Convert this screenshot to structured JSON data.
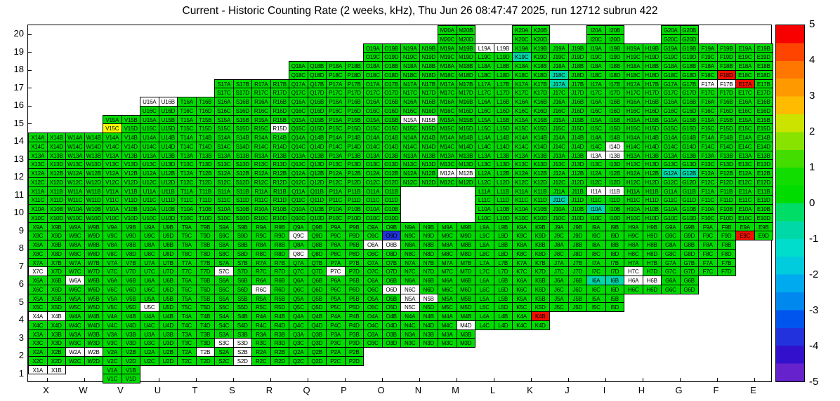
{
  "title": "Current - Historic Counting Rate (2 weeks, kHz), Thu Jun 26 08:47:47 2025, run 12712 subrun 422",
  "chart_data": {
    "type": "heatmap",
    "xlabel": "",
    "ylabel": "",
    "columns": [
      "X",
      "W",
      "V",
      "U",
      "T",
      "S",
      "R",
      "Q",
      "P",
      "O",
      "N",
      "M",
      "L",
      "K",
      "J",
      "I",
      "H",
      "G",
      "F",
      "E"
    ],
    "rows": [
      20,
      19,
      18,
      17,
      16,
      15,
      14,
      13,
      12,
      11,
      10,
      9,
      8,
      7,
      6,
      5,
      4,
      3,
      2,
      1
    ],
    "channels": [
      "A",
      "B",
      "C",
      "D"
    ],
    "value_colors": {
      "g": "#00dc00",
      "c": "#00d8a8",
      "w": "#ffffff",
      "y": "#ffff00",
      "r": "#f01000",
      "b": "#2233dd"
    },
    "legend_note": "g=~+0.5 green, c=~-0.5 teal, y=~+2.5 yellow, r=~+5 red, b=~-3.5 blue, w=no data, x=absent",
    "colorbar": {
      "min": -5,
      "max": 5,
      "ticks": [
        5,
        4,
        3,
        2,
        1,
        0,
        -1,
        -2,
        -3,
        -4,
        -5
      ],
      "band_colors": [
        "#f80000",
        "#ff4400",
        "#ff7700",
        "#ff9900",
        "#ffbb00",
        "#cce300",
        "#88e300",
        "#44dd00",
        "#11dd00",
        "#00dc00",
        "#00dd66",
        "#00d8a8",
        "#00ddcc",
        "#00ccdd",
        "#00aaee",
        "#0088ee",
        "#0055ee",
        "#2233dd",
        "#3311cc",
        "#6622cc"
      ]
    },
    "rows_spec": [
      {
        "row": 20,
        "cols": "MKIG",
        "overrides": {}
      },
      {
        "row": 19,
        "cols": "ONMLKJIHGFE",
        "overrides": {
          "L": "wwgg",
          "K": "ggcg"
        }
      },
      {
        "row": 18,
        "cols": "QPONMLKJIHGFE",
        "overrides": {
          "J": "ggcg",
          "F": "gggr"
        }
      },
      {
        "row": 17,
        "cols": "SRQPONMLKJIHGFE",
        "overrides": {
          "J": "cggg",
          "F": "wwgg",
          "E": "rggg"
        }
      },
      {
        "row": 16,
        "cols": "UTSRQPONMLKJIHGFE",
        "overrides": {
          "U": "wwgg"
        }
      },
      {
        "row": 15,
        "cols": "VUTSRQPONMLKJIHGFE",
        "overrides": {
          "V": "ggyg",
          "R": "gggw",
          "N": "wwgg"
        }
      },
      {
        "row": 14,
        "cols": "XWVUTSRQPONMLKJIHGFE",
        "overrides": {
          "I": "gggw"
        }
      },
      {
        "row": 13,
        "cols": "XWVUTSRQPONMLKJIHGFE",
        "overrides": {
          "I": "wwgg"
        }
      },
      {
        "row": 12,
        "cols": "XWVUTSRQPONMLKJIHGFE",
        "overrides": {
          "M": "wwgg",
          "G": "ccgg"
        }
      },
      {
        "row": 11,
        "cols": "XWVUTSRQPOLKJIHGFE",
        "overrides": {
          "J": "ggcg",
          "I": "wwgg"
        }
      },
      {
        "row": 10,
        "cols": "XWVUTSRQPOLKJIHGFE",
        "overrides": {
          "I": "cggg"
        }
      },
      {
        "row": 9,
        "cols": "XWVUTSRQPONMLKJIHGFE",
        "overrides": {
          "Q": "ggwg",
          "O": "gggb",
          "E": "ggrg"
        }
      },
      {
        "row": 8,
        "cols": "XWVUTSRQPONMLKJIHGF",
        "overrides": {
          "Q": "ggwg",
          "O": "wwgg"
        }
      },
      {
        "row": 7,
        "cols": "XWVUTSRQPONMLKJIHGF",
        "overrides": {
          "X": "ggwg",
          "S": "ggwg",
          "P": "ggwg",
          "H": "ggwg"
        }
      },
      {
        "row": 6,
        "cols": "XWVUTSRQPONMLKJIHG",
        "overrides": {
          "W": "wggg",
          "R": "ggwg",
          "O": "gggw",
          "N": "ggwg",
          "I": "ccgg",
          "H": "wwgg"
        }
      },
      {
        "row": 5,
        "cols": "XWVUTSRQPONMLKJI",
        "overrides": {
          "U": "ggwg",
          "N": "wwwg"
        }
      },
      {
        "row": 4,
        "cols": "XWVUTSRQPONMLK",
        "overrides": {
          "X": "wwgg",
          "M": "gggw",
          "K": "grgg"
        }
      },
      {
        "row": 3,
        "cols": "XWVUTSRQPONM",
        "overrides": {
          "S": "ggww"
        }
      },
      {
        "row": 2,
        "cols": "XWVUTSRQP",
        "overrides": {
          "W": "wwgg",
          "T": "gwgg",
          "S": "gwgw"
        }
      },
      {
        "row": 1,
        "cols": "XV",
        "overrides": {
          "X": "wwxx"
        }
      }
    ]
  }
}
